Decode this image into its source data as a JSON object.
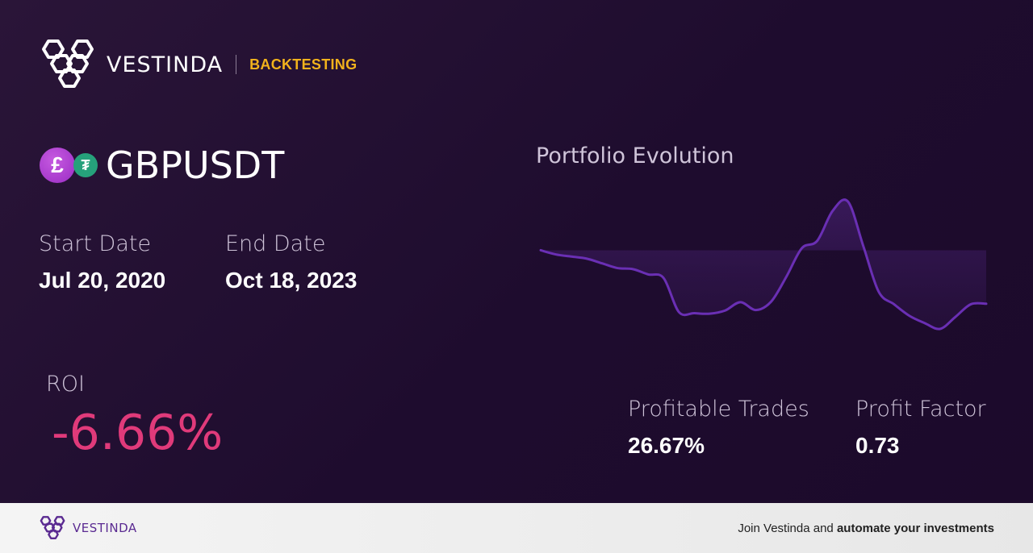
{
  "brand": {
    "name": "VESTINDA",
    "tag": "BACKTESTING"
  },
  "pair": {
    "symbol": "GBPUSDT",
    "base_icon": "pound-coin-icon",
    "quote_icon": "tether-coin-icon",
    "base_glyph": "£",
    "quote_glyph": "₮"
  },
  "dates": {
    "start_label": "Start Date",
    "start_value": "Jul 20, 2020",
    "end_label": "End Date",
    "end_value": "Oct 18, 2023"
  },
  "roi": {
    "label": "ROI",
    "value": "-6.66%"
  },
  "metrics": {
    "profitable_trades_label": "Profitable Trades",
    "profitable_trades_value": "26.67%",
    "profit_factor_label": "Profit Factor",
    "profit_factor_value": "0.73"
  },
  "chart_data": {
    "type": "area",
    "title": "Portfolio Evolution",
    "baseline": 0,
    "values": [
      0,
      -0.8,
      -1.2,
      -1.6,
      -2.5,
      -3.4,
      -3.6,
      -4.6,
      -5.3,
      -11.8,
      -12.0,
      -12.1,
      -11.5,
      -9.9,
      -11.4,
      -9.8,
      -5.0,
      0.4,
      1.8,
      7.5,
      9.3,
      0.8,
      -7.9,
      -10.3,
      -12.5,
      -13.9,
      -15.0,
      -12.7,
      -10.3,
      -10.2
    ],
    "grid": false,
    "legend": false
  },
  "colors": {
    "accent": "#f2b21c",
    "roi_negative": "#e03a7a",
    "chart_line": "#6a2fb4",
    "footer_brand": "#5a2a91"
  },
  "footer": {
    "brand": "VESTINDA",
    "cta_prefix": "Join Vestinda and ",
    "cta_bold": "automate your investments"
  }
}
